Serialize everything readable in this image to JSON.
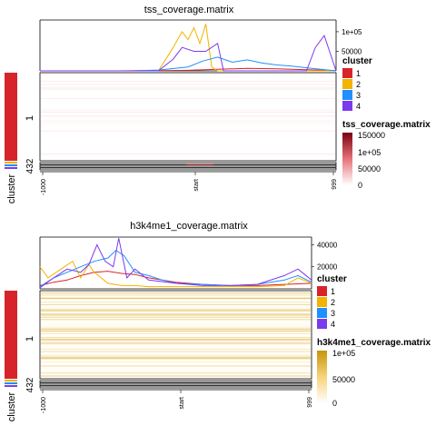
{
  "chart_data": [
    {
      "type": "heatmap",
      "title": "tss_coverage.matrix",
      "x_tick_labels": [
        "-1000",
        "start",
        "999"
      ],
      "summary_y_ticks": [
        50000,
        100000
      ],
      "summary_y_tick_labels": [
        "50000",
        "1e+05"
      ],
      "summary_ylim": [
        0,
        130000
      ],
      "cluster_legend": {
        "title": "cluster",
        "entries": [
          {
            "label": "1",
            "color": "#d7242b"
          },
          {
            "label": "2",
            "color": "#f3b300"
          },
          {
            "label": "3",
            "color": "#1e90ff"
          },
          {
            "label": "4",
            "color": "#7c3aed"
          }
        ]
      },
      "color_legend": {
        "title": "tss_coverage.matrix",
        "tick_labels": [
          "150000",
          "1e+05",
          "50000",
          "0"
        ],
        "range": [
          0,
          150000
        ],
        "colors": [
          "#ffffff",
          "#e8737a",
          "#7a0010"
        ]
      },
      "row_axis_label": "cluster",
      "row_labels": [
        "1",
        "2",
        "3",
        "4"
      ],
      "row_label_text": "432",
      "series": [
        {
          "name": "1",
          "x": [
            0,
            10,
            20,
            30,
            40,
            50,
            60,
            70,
            80,
            90,
            100
          ],
          "values": [
            0,
            0,
            0,
            200,
            500,
            1500,
            4000,
            6500,
            5000,
            3000,
            1000
          ]
        },
        {
          "name": "2",
          "x": [
            0,
            10,
            20,
            30,
            40,
            45,
            48,
            50,
            52,
            54,
            56,
            58,
            60,
            70,
            80,
            90,
            100
          ],
          "values": [
            0,
            0,
            0,
            0,
            0,
            60000,
            100000,
            80000,
            110000,
            70000,
            120000,
            10000,
            0,
            0,
            0,
            0,
            0
          ]
        },
        {
          "name": "3",
          "x": [
            0,
            10,
            20,
            30,
            40,
            50,
            55,
            60,
            65,
            70,
            75,
            80,
            85,
            90,
            100
          ],
          "values": [
            0,
            0,
            0,
            0,
            2000,
            10000,
            25000,
            35000,
            22000,
            28000,
            20000,
            15000,
            12000,
            8000,
            0
          ]
        },
        {
          "name": "4",
          "x": [
            0,
            10,
            20,
            30,
            40,
            45,
            48,
            52,
            56,
            60,
            62,
            70,
            80,
            90,
            93,
            96,
            100
          ],
          "values": [
            0,
            0,
            0,
            0,
            0,
            30000,
            60000,
            50000,
            50000,
            70000,
            0,
            0,
            0,
            0,
            60000,
            90000,
            0
          ]
        }
      ]
    },
    {
      "type": "heatmap",
      "title": "h3k4me1_coverage.matrix",
      "x_tick_labels": [
        "-1000",
        "start",
        "999"
      ],
      "summary_y_ticks": [
        20000,
        40000
      ],
      "summary_y_tick_labels": [
        "20000",
        "40000"
      ],
      "summary_ylim": [
        0,
        47000
      ],
      "cluster_legend": {
        "title": "cluster",
        "entries": [
          {
            "label": "1",
            "color": "#d7242b"
          },
          {
            "label": "2",
            "color": "#f3b300"
          },
          {
            "label": "3",
            "color": "#1e90ff"
          },
          {
            "label": "4",
            "color": "#7c3aed"
          }
        ]
      },
      "color_legend": {
        "title": "h3k4me1_coverage.matrix",
        "tick_labels": [
          "1e+05",
          "50000",
          "0"
        ],
        "range": [
          0,
          110000
        ],
        "colors": [
          "#ffffff",
          "#f7d37a",
          "#c8940a"
        ]
      },
      "row_axis_label": "cluster",
      "row_labels": [
        "1",
        "2",
        "3",
        "4"
      ],
      "row_label_text": "432",
      "series": [
        {
          "name": "1",
          "x": [
            0,
            5,
            10,
            15,
            20,
            25,
            30,
            35,
            40,
            45,
            50,
            60,
            70,
            80,
            90,
            100
          ],
          "values": [
            3000,
            6000,
            8000,
            12000,
            15000,
            16000,
            14000,
            13000,
            10000,
            8000,
            6000,
            4000,
            3000,
            3000,
            4000,
            5000
          ]
        },
        {
          "name": "2",
          "x": [
            0,
            3,
            6,
            9,
            12,
            15,
            18,
            20,
            25,
            30,
            35,
            40,
            50,
            60,
            70,
            80,
            90,
            95,
            100
          ],
          "values": [
            20000,
            10000,
            15000,
            20000,
            25000,
            10000,
            22000,
            15000,
            5000,
            3000,
            3000,
            2000,
            2000,
            2000,
            2000,
            2000,
            3000,
            10000,
            5000
          ]
        },
        {
          "name": "3",
          "x": [
            0,
            5,
            10,
            15,
            20,
            25,
            28,
            31,
            35,
            40,
            45,
            50,
            60,
            70,
            80,
            90,
            95,
            100
          ],
          "values": [
            2000,
            10000,
            15000,
            20000,
            25000,
            28000,
            35000,
            30000,
            15000,
            12000,
            8000,
            5000,
            4000,
            3000,
            4000,
            8000,
            12000,
            6000
          ]
        },
        {
          "name": "4",
          "x": [
            0,
            5,
            10,
            15,
            18,
            21,
            24,
            27,
            29,
            32,
            35,
            40,
            50,
            60,
            70,
            80,
            90,
            95,
            100
          ],
          "values": [
            1000,
            10000,
            18000,
            15000,
            22000,
            40000,
            25000,
            20000,
            46000,
            10000,
            18000,
            8000,
            5000,
            3000,
            3000,
            4000,
            12000,
            18000,
            8000
          ]
        }
      ]
    }
  ]
}
